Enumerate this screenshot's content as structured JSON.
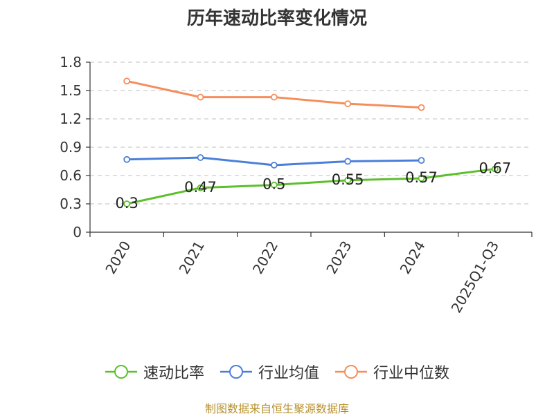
{
  "chart_data": {
    "type": "line",
    "title": "历年速动比率变化情况",
    "categories": [
      "2020",
      "2021",
      "2022",
      "2023",
      "2024",
      "2025Q1-Q3"
    ],
    "series": [
      {
        "name": "速动比率",
        "values": [
          0.3,
          0.47,
          0.5,
          0.55,
          0.57,
          0.67
        ],
        "labels": [
          "0.3",
          "0.47",
          "0.5",
          "0.55",
          "0.57",
          "0.67"
        ],
        "color": "#5cc02c"
      },
      {
        "name": "行业均值",
        "values": [
          0.77,
          0.79,
          0.71,
          0.75,
          0.76,
          null
        ],
        "color": "#4a7fd9"
      },
      {
        "name": "行业中位数",
        "values": [
          1.6,
          1.43,
          1.43,
          1.36,
          1.32,
          null
        ],
        "color": "#f58d5b"
      }
    ],
    "ylim": [
      0,
      1.8
    ],
    "yticks": [
      "0",
      "0.3",
      "0.6",
      "0.9",
      "1.2",
      "1.5",
      "1.8"
    ],
    "grid": true,
    "legend": "bottom-center"
  },
  "source": "制图数据来自恒生聚源数据库"
}
